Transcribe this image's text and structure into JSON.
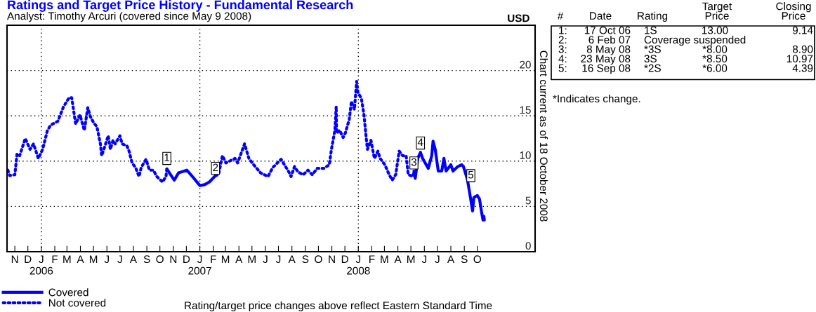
{
  "chart_data": {
    "type": "line",
    "title": "Ratings and Target Price History - Fundamental Research",
    "subtitle": "Analyst: Timothy Arcuri (covered since May 9 2008)",
    "ylabel": "USD",
    "xlim": [
      "2005-10-14",
      "2009-02-11"
    ],
    "ylim": [
      0,
      25
    ],
    "yticks": [
      0,
      5,
      10,
      15,
      20
    ],
    "xticks": [
      {
        "value": "2005-11-01",
        "label": "N"
      },
      {
        "value": "2005-12-01",
        "label": "D"
      },
      {
        "value": "2006-01-01",
        "label": "J\n2006"
      },
      {
        "value": "2006-02-01",
        "label": "F"
      },
      {
        "value": "2006-03-01",
        "label": "M"
      },
      {
        "value": "2006-04-01",
        "label": "A"
      },
      {
        "value": "2006-05-01",
        "label": "M"
      },
      {
        "value": "2006-06-01",
        "label": "J"
      },
      {
        "value": "2006-07-01",
        "label": "J"
      },
      {
        "value": "2006-08-01",
        "label": "A"
      },
      {
        "value": "2006-09-01",
        "label": "S"
      },
      {
        "value": "2006-10-01",
        "label": "O"
      },
      {
        "value": "2006-11-01",
        "label": "N"
      },
      {
        "value": "2006-12-01",
        "label": "D"
      },
      {
        "value": "2007-01-01",
        "label": "J\n2007"
      },
      {
        "value": "2007-02-01",
        "label": "F"
      },
      {
        "value": "2007-03-01",
        "label": "M"
      },
      {
        "value": "2007-04-01",
        "label": "A"
      },
      {
        "value": "2007-05-01",
        "label": "M"
      },
      {
        "value": "2007-06-01",
        "label": "J"
      },
      {
        "value": "2007-07-01",
        "label": "J"
      },
      {
        "value": "2007-08-01",
        "label": "A"
      },
      {
        "value": "2007-09-01",
        "label": "S"
      },
      {
        "value": "2007-10-01",
        "label": "O"
      },
      {
        "value": "2007-11-01",
        "label": "N"
      },
      {
        "value": "2007-12-01",
        "label": "D"
      },
      {
        "value": "2008-01-01",
        "label": "J\n2008"
      },
      {
        "value": "2008-02-01",
        "label": "F"
      },
      {
        "value": "2008-03-01",
        "label": "M"
      },
      {
        "value": "2008-04-01",
        "label": "A"
      },
      {
        "value": "2008-05-01",
        "label": "M"
      },
      {
        "value": "2008-06-01",
        "label": "J"
      },
      {
        "value": "2008-07-01",
        "label": "J"
      },
      {
        "value": "2008-08-01",
        "label": "A"
      },
      {
        "value": "2008-09-01",
        "label": "S"
      },
      {
        "value": "2008-10-01",
        "label": "O"
      }
    ],
    "grid": "y",
    "legend": "bottom left",
    "ref_lines": [
      {
        "axis": "x",
        "value": "2006-01-01",
        "color": "#000000",
        "line_style": "dotted"
      },
      {
        "axis": "x",
        "value": "2007-01-01",
        "color": "#000000",
        "line_style": "dotted"
      },
      {
        "axis": "x",
        "value": "2008-01-01",
        "color": "#000000",
        "line_style": "dotted"
      }
    ],
    "series": [
      {
        "name": "Covered",
        "color": "#0000ff",
        "line_style": "solid",
        "x": [
          "2006-10-17",
          "2006-10-23",
          "2006-11-03",
          "2006-11-13",
          "2006-12-02",
          "2006-12-15",
          "2007-01-01",
          "2007-01-12",
          "2007-01-23",
          "2007-02-06",
          "2007-08-01",
          "2008-05-08",
          "2008-05-11",
          "2008-05-17",
          "2008-05-23",
          "2008-05-28",
          "2008-06-10",
          "2008-06-18",
          "2008-06-21",
          "2008-06-26",
          "2008-07-03",
          "2008-07-11",
          "2008-07-16",
          "2008-07-21",
          "2008-08-01",
          "2008-08-06",
          "2008-08-17",
          "2008-08-26",
          "2008-08-30",
          "2008-09-08",
          "2008-09-15",
          "2008-09-20",
          "2008-09-23",
          "2008-10-01",
          "2008-10-06",
          "2008-10-11",
          "2008-10-14",
          "2008-10-16",
          "2008-10-17"
        ],
        "values": [
          9.14,
          8.7,
          7.9,
          8.7,
          9.0,
          8.3,
          7.3,
          7.4,
          7.7,
          8.4,
          null,
          8.9,
          8.1,
          10.3,
          10.97,
          10.3,
          9.2,
          10.6,
          12.2,
          11.3,
          8.9,
          8.9,
          10.3,
          8.9,
          9.6,
          8.9,
          9.4,
          9.6,
          9.4,
          8.0,
          6.0,
          4.5,
          6.0,
          6.2,
          5.8,
          4.3,
          3.5,
          3.9,
          3.5
        ]
      },
      {
        "name": "Not covered",
        "color": "#0000ff",
        "line_style": "dotted",
        "x": [
          "2005-10-16",
          "2005-10-20",
          "2005-11-01",
          "2005-11-06",
          "2005-11-12",
          "2005-11-25",
          "2005-12-06",
          "2005-12-14",
          "2005-12-25",
          "2006-01-04",
          "2006-01-15",
          "2006-01-23",
          "2006-02-08",
          "2006-02-21",
          "2006-03-06",
          "2006-03-12",
          "2006-03-21",
          "2006-03-31",
          "2006-04-10",
          "2006-04-18",
          "2006-04-24",
          "2006-05-02",
          "2006-05-09",
          "2006-05-17",
          "2006-05-20",
          "2006-05-25",
          "2006-06-04",
          "2006-06-09",
          "2006-06-15",
          "2006-06-20",
          "2006-07-01",
          "2006-07-06",
          "2006-07-17",
          "2006-07-22",
          "2006-07-29",
          "2006-08-06",
          "2006-08-14",
          "2006-08-19",
          "2006-08-30",
          "2006-09-07",
          "2006-09-16",
          "2006-09-24",
          "2006-10-07",
          "2006-10-15",
          "2006-10-17",
          "2006-12-01",
          "2007-02-06",
          "2007-02-13",
          "2007-02-22",
          "2007-03-02",
          "2007-03-23",
          "2007-03-29",
          "2007-04-14",
          "2007-04-24",
          "2007-05-05",
          "2007-05-21",
          "2007-06-07",
          "2007-06-18",
          "2007-07-07",
          "2007-07-25",
          "2007-07-30",
          "2007-08-07",
          "2007-08-15",
          "2007-08-27",
          "2007-09-07",
          "2007-09-17",
          "2007-09-28",
          "2007-10-14",
          "2007-10-26",
          "2007-10-31",
          "2007-11-08",
          "2007-11-11",
          "2007-11-12",
          "2007-11-19",
          "2007-11-27",
          "2007-12-02",
          "2007-12-11",
          "2007-12-16",
          "2007-12-23",
          "2007-12-28",
          "2007-12-31",
          "2008-01-08",
          "2008-01-14",
          "2008-01-19",
          "2008-01-22",
          "2008-01-30",
          "2008-02-07",
          "2008-02-15",
          "2008-02-20",
          "2008-03-02",
          "2008-03-12",
          "2008-03-19",
          "2008-03-27",
          "2008-04-04",
          "2008-04-12",
          "2008-04-20",
          "2008-04-25",
          "2008-05-06",
          "2008-05-08"
        ],
        "values": [
          9.0,
          8.4,
          8.5,
          10.8,
          10.6,
          12.5,
          11.3,
          11.9,
          10.3,
          11.3,
          13.4,
          14.0,
          14.4,
          16.0,
          17.0,
          17.0,
          14.1,
          15.1,
          13.4,
          15.9,
          14.9,
          14.2,
          13.8,
          11.9,
          10.6,
          11.3,
          12.8,
          11.3,
          12.3,
          11.9,
          12.8,
          11.9,
          11.7,
          11.1,
          9.8,
          9.3,
          8.3,
          9.3,
          10.2,
          9.0,
          9.0,
          8.3,
          7.7,
          8.3,
          9.14,
          null,
          8.4,
          8.5,
          10.6,
          9.8,
          10.3,
          9.8,
          11.9,
          10.3,
          9.6,
          8.7,
          8.3,
          9.3,
          10.2,
          8.8,
          8.3,
          9.4,
          8.8,
          8.5,
          9.0,
          8.5,
          9.2,
          9.2,
          9.6,
          11.3,
          13.4,
          16.0,
          13.1,
          13.4,
          12.6,
          13.1,
          14.6,
          16.6,
          15.7,
          18.8,
          17.6,
          16.9,
          15.1,
          12.6,
          11.3,
          12.3,
          10.3,
          11.1,
          10.3,
          9.6,
          8.5,
          7.9,
          8.5,
          11.1,
          10.6,
          10.6,
          8.5,
          8.3,
          8.9
        ]
      }
    ],
    "annotations": [
      {
        "text": "1",
        "x": "2006-10-17",
        "y": 10.3
      },
      {
        "text": "2",
        "x": "2007-02-06",
        "y": 9.2
      },
      {
        "text": "3",
        "x": "2008-05-08",
        "y": 9.8
      },
      {
        "text": "4",
        "x": "2008-05-23",
        "y": 12.0
      },
      {
        "text": "5",
        "x": "2008-09-16",
        "y": 8.4
      },
      "Chart current as of 18 October 2008",
      "Rating/target price changes above reflect Eastern Standard Time",
      "*Indicates change.",
      "#\tDate\tRating\tTarget\nPrice\tClosing\nPrice",
      "1:\t17 Oct 06\t1S\t13.00\t9.14",
      "2:\t6 Feb 07\tCoverage suspended",
      "3:\t8 May 08\t*3S\t*8.00\t8.90",
      "4:\t23 May 08\t3S\t*8.50\t10.97",
      "5:\t16 Sep 08\t*2S\t*6.00\t4.39"
    ]
  }
}
